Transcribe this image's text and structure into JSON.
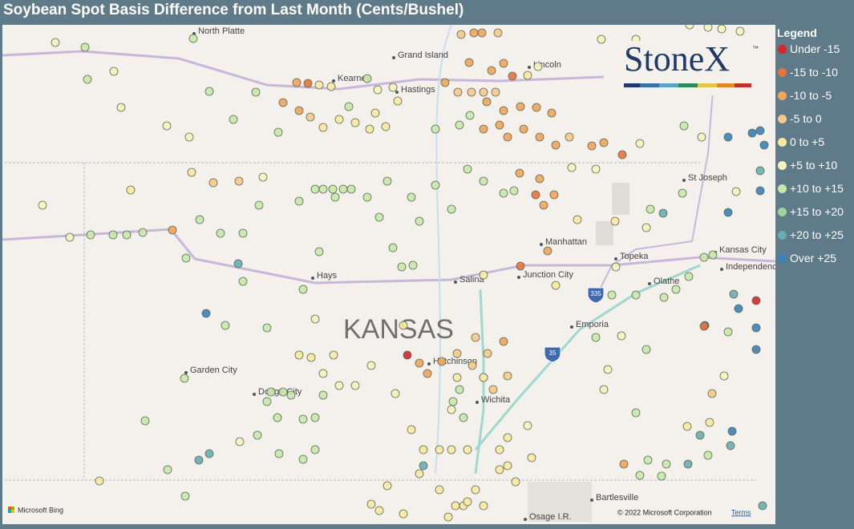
{
  "header": {
    "title": "Soybean Spot Basis Difference from Last Month (Cents/Bushel)"
  },
  "legend": {
    "title": "Legend",
    "items": [
      {
        "label": "Under -15",
        "color": "#d62728"
      },
      {
        "label": "-15 to -10",
        "color": "#e8733a"
      },
      {
        "label": "-10 to -5",
        "color": "#f2a45a"
      },
      {
        "label": "-5 to 0",
        "color": "#f7c987"
      },
      {
        "label": "0 to +5",
        "color": "#fbe9a0"
      },
      {
        "label": "+5 to +10",
        "color": "#f3f4bb"
      },
      {
        "label": "+10 to +15",
        "color": "#c8e8aa"
      },
      {
        "label": "+15 to +20",
        "color": "#9fd49c"
      },
      {
        "label": "+20 to +25",
        "color": "#68adb1"
      },
      {
        "label": "Over +25",
        "color": "#3a82b8"
      }
    ]
  },
  "logo": {
    "text": "StoneX",
    "mark": "™"
  },
  "map": {
    "state_label": "KANSAS",
    "places": [
      "North Platte",
      "Grand Island",
      "Lincoln",
      "Kearney",
      "Hastings",
      "St Joseph",
      "Manhattan",
      "Kansas City",
      "Independence",
      "Topeka",
      "Hays",
      "Salina",
      "Junction City",
      "Olathe",
      "Emporia",
      "Hutchinson",
      "Garden City",
      "Dodge City",
      "Wichita",
      "Bartlesville",
      "Osage I.R."
    ],
    "highways": [
      "335",
      "35"
    ]
  },
  "footer": {
    "attribution": "Microsoft Bing",
    "copyright": "© 2022 Microsoft Corporation",
    "terms": "Terms"
  }
}
